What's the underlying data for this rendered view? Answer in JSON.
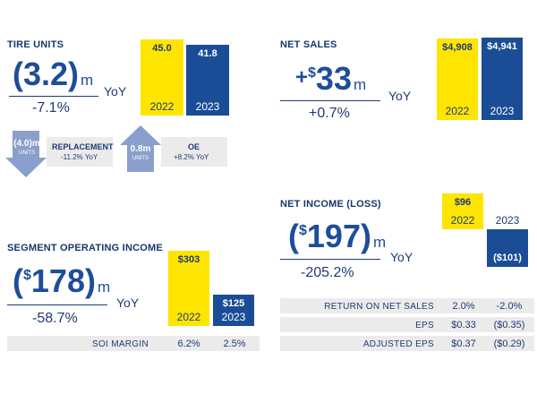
{
  "tire_units": {
    "title": "TIRE UNITS",
    "big_value": "(3.2)",
    "unit": "m",
    "yoy_label": "YoY",
    "pct": "-7.1%",
    "replacement": {
      "value": "(4.0)m",
      "units": "UNITS",
      "label": "REPLACEMENT",
      "sub": "-11.2% YoY"
    },
    "oe": {
      "value": "0.8m",
      "units": "UNITS",
      "label": "OE",
      "sub": "+8.2% YoY"
    }
  },
  "net_sales": {
    "title": "NET SALES",
    "prefix": "+",
    "sup": "$",
    "big_value": "33",
    "unit": "m",
    "yoy_label": "YoY",
    "pct": "+0.7%"
  },
  "net_income": {
    "title": "NET INCOME (LOSS)",
    "sup": "$",
    "big_value": "197",
    "open": "(",
    "close": ")",
    "unit": "m",
    "yoy_label": "YoY",
    "pct": "-205.2%",
    "rows": [
      {
        "label": "RETURN ON NET SALES",
        "v2022": "2.0%",
        "v2023": "-2.0%"
      },
      {
        "label": "EPS",
        "v2022": "$0.33",
        "v2023": "($0.35)"
      },
      {
        "label": "ADJUSTED EPS",
        "v2022": "$0.37",
        "v2023": "($0.29)"
      }
    ]
  },
  "soi": {
    "title": "SEGMENT OPERATING INCOME",
    "sup": "$",
    "big_value": "178",
    "open": "(",
    "close": ")",
    "unit": "m",
    "yoy_label": "YoY",
    "pct": "-58.7%",
    "rows": [
      {
        "label": "SOI MARGIN",
        "v2022": "6.2%",
        "v2023": "2.5%"
      }
    ]
  },
  "colors": {
    "y2022": "#fde500",
    "y2023": "#1a4d96",
    "arrow": "#8a9fcc",
    "row_bg": "#ebebeb"
  },
  "chart_data": [
    {
      "type": "bar",
      "categories": [
        "2022",
        "2023"
      ],
      "values": [
        45.0,
        41.8
      ],
      "labels": [
        "45.0",
        "41.8"
      ]
    },
    {
      "type": "bar",
      "categories": [
        "2022",
        "2023"
      ],
      "values": [
        4908,
        4941
      ],
      "labels": [
        "$4,908",
        "$4,941"
      ]
    },
    {
      "type": "bar",
      "categories": [
        "2022",
        "2023"
      ],
      "values": [
        96,
        -101
      ],
      "labels": [
        "$96",
        "($101)"
      ]
    },
    {
      "type": "bar",
      "categories": [
        "2022",
        "2023"
      ],
      "values": [
        303,
        125
      ],
      "labels": [
        "$303",
        "$125"
      ]
    }
  ]
}
